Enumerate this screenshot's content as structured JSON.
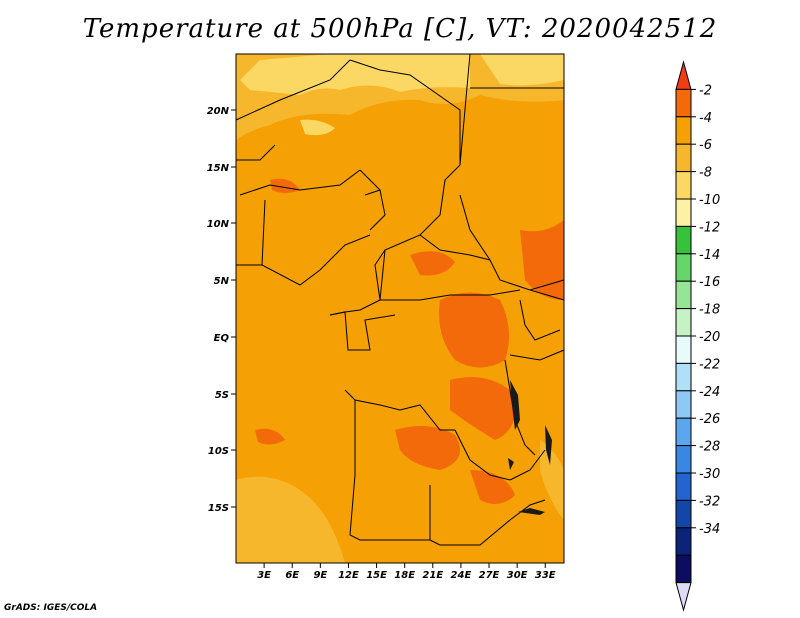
{
  "title": "Temperature at 500hPa [C], VT: 2020042512",
  "credit": "GrADS: IGES/COLA",
  "map": {
    "lon_range": [
      0,
      35
    ],
    "lat_range": [
      -20,
      25
    ],
    "lon_ticks": [
      "3E",
      "6E",
      "9E",
      "12E",
      "15E",
      "18E",
      "21E",
      "24E",
      "27E",
      "30E",
      "33E"
    ],
    "lat_ticks": [
      "20N",
      "15N",
      "10N",
      "5N",
      "EQ",
      "5S",
      "10S",
      "15S"
    ]
  },
  "colorbar": {
    "labels": [
      "-2",
      "-4",
      "-6",
      "-8",
      "-10",
      "-12",
      "-14",
      "-16",
      "-18",
      "-20",
      "-22",
      "-24",
      "-26",
      "-28",
      "-30",
      "-32",
      "-34"
    ],
    "colors": [
      "#f03d12",
      "#f26a0a",
      "#f5a004",
      "#f7b72c",
      "#fbd863",
      "#fdf1a6",
      "#36c23a",
      "#66d66a",
      "#96e596",
      "#c6f2c6",
      "#e8fbfb",
      "#b0dff7",
      "#8ec8f5",
      "#5aa6ef",
      "#3a86e3",
      "#2265cf",
      "#1246a8",
      "#0b2478",
      "#0c0c60",
      "#dcdcf8"
    ]
  }
}
